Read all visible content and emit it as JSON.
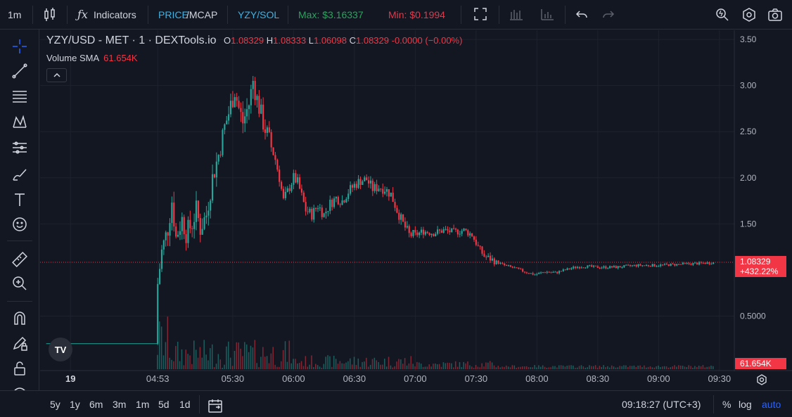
{
  "toolbar": {
    "interval": "1m",
    "indicators_label": "Indicators",
    "price_label": "PRICE",
    "mcap_label": "/MCAP",
    "pair_label": "YZY/SOL",
    "max_label": "Max: $3.16337",
    "min_label": "Min: $0.1994"
  },
  "colors": {
    "up": "#26a69a",
    "down": "#f23645",
    "accent": "#2962ff",
    "background": "#131722",
    "grid": "#1e222d"
  },
  "legend": {
    "symbol": "YZY/USD - MET · 1 · DEXTools.io",
    "o_label": "O",
    "o_value": "1.08329",
    "h_label": "H",
    "h_value": "1.08333",
    "l_label": "L",
    "l_value": "1.06098",
    "c_label": "C",
    "c_value": "1.08329",
    "change": "-0.0000 (−0.00%)",
    "volume_label": "Volume SMA",
    "volume_value": "61.654K"
  },
  "left_tools": [
    "crosshair-icon",
    "trend-line-icon",
    "fib-icon",
    "pattern-icon",
    "forecast-icon",
    "brush-icon",
    "text-icon",
    "emoji-icon",
    "ruler-icon",
    "zoom-in-icon",
    "magnet-icon",
    "lock-drawing-icon",
    "lock-icon",
    "eye-icon"
  ],
  "bottombar": {
    "ranges": [
      "5y",
      "1y",
      "6m",
      "3m",
      "1m",
      "5d",
      "1d"
    ],
    "time": "09:18:27 (UTC+3)",
    "percent": "%",
    "log": "log",
    "auto": "auto"
  },
  "chart_data": {
    "type": "candlestick",
    "title": "YZY/USD - MET · 1 · DEXTools.io",
    "y_ticks": [
      "3.50",
      "3.00",
      "2.50",
      "2.00",
      "1.50",
      "0.5000"
    ],
    "y_tick_values": [
      3.5,
      3.0,
      2.5,
      2.0,
      1.5,
      0.5
    ],
    "x_ticks": [
      "19",
      "04:53",
      "05:30",
      "06:00",
      "06:30",
      "07:00",
      "07:30",
      "08:00",
      "08:30",
      "09:00",
      "09:30"
    ],
    "x_tick_minutes": [
      250,
      293,
      330,
      360,
      390,
      420,
      450,
      480,
      510,
      540,
      570
    ],
    "x_range_minutes": [
      235,
      577
    ],
    "y_range": [
      0.0,
      3.6
    ],
    "last_price": "1.08329",
    "last_price_value": 1.08329,
    "last_change": "+432.22%",
    "volume_badge": "61.654K",
    "price_points": [
      {
        "t": 238,
        "p": 0.2
      },
      {
        "t": 293,
        "p": 0.2
      },
      {
        "t": 294,
        "p": 0.85
      },
      {
        "t": 296,
        "p": 1.2
      },
      {
        "t": 299,
        "p": 1.45
      },
      {
        "t": 301,
        "p": 1.75
      },
      {
        "t": 303,
        "p": 1.35
      },
      {
        "t": 306,
        "p": 1.55
      },
      {
        "t": 308,
        "p": 1.4
      },
      {
        "t": 311,
        "p": 1.5
      },
      {
        "t": 313,
        "p": 1.65
      },
      {
        "t": 315,
        "p": 1.45
      },
      {
        "t": 318,
        "p": 1.6
      },
      {
        "t": 321,
        "p": 2.0
      },
      {
        "t": 324,
        "p": 2.25
      },
      {
        "t": 327,
        "p": 2.55
      },
      {
        "t": 329,
        "p": 2.7
      },
      {
        "t": 332,
        "p": 2.95
      },
      {
        "t": 334,
        "p": 2.75
      },
      {
        "t": 336,
        "p": 2.6
      },
      {
        "t": 339,
        "p": 2.8
      },
      {
        "t": 341,
        "p": 3.05
      },
      {
        "t": 343,
        "p": 2.85
      },
      {
        "t": 346,
        "p": 2.6
      },
      {
        "t": 349,
        "p": 2.4
      },
      {
        "t": 352,
        "p": 2.2
      },
      {
        "t": 354,
        "p": 2.0
      },
      {
        "t": 356,
        "p": 1.75
      },
      {
        "t": 358,
        "p": 1.85
      },
      {
        "t": 361,
        "p": 2.0
      },
      {
        "t": 363,
        "p": 1.95
      },
      {
        "t": 365,
        "p": 1.8
      },
      {
        "t": 367,
        "p": 1.65
      },
      {
        "t": 370,
        "p": 1.6
      },
      {
        "t": 373,
        "p": 1.7
      },
      {
        "t": 376,
        "p": 1.6
      },
      {
        "t": 379,
        "p": 1.72
      },
      {
        "t": 382,
        "p": 1.78
      },
      {
        "t": 385,
        "p": 1.75
      },
      {
        "t": 388,
        "p": 1.85
      },
      {
        "t": 391,
        "p": 1.92
      },
      {
        "t": 394,
        "p": 1.97
      },
      {
        "t": 397,
        "p": 1.98
      },
      {
        "t": 400,
        "p": 1.88
      },
      {
        "t": 403,
        "p": 1.9
      },
      {
        "t": 406,
        "p": 1.88
      },
      {
        "t": 409,
        "p": 1.82
      },
      {
        "t": 412,
        "p": 1.65
      },
      {
        "t": 415,
        "p": 1.5
      },
      {
        "t": 418,
        "p": 1.38
      },
      {
        "t": 421,
        "p": 1.38
      },
      {
        "t": 425,
        "p": 1.42
      },
      {
        "t": 430,
        "p": 1.4
      },
      {
        "t": 435,
        "p": 1.43
      },
      {
        "t": 440,
        "p": 1.41
      },
      {
        "t": 445,
        "p": 1.43
      },
      {
        "t": 449,
        "p": 1.38
      },
      {
        "t": 452,
        "p": 1.25
      },
      {
        "t": 455,
        "p": 1.15
      },
      {
        "t": 460,
        "p": 1.1
      },
      {
        "t": 465,
        "p": 1.05
      },
      {
        "t": 470,
        "p": 1.02
      },
      {
        "t": 475,
        "p": 0.98
      },
      {
        "t": 480,
        "p": 0.95
      },
      {
        "t": 485,
        "p": 0.98
      },
      {
        "t": 490,
        "p": 0.97
      },
      {
        "t": 495,
        "p": 1.0
      },
      {
        "t": 500,
        "p": 1.03
      },
      {
        "t": 505,
        "p": 1.04
      },
      {
        "t": 510,
        "p": 1.03
      },
      {
        "t": 520,
        "p": 1.03
      },
      {
        "t": 530,
        "p": 1.05
      },
      {
        "t": 540,
        "p": 1.05
      },
      {
        "t": 550,
        "p": 1.06
      },
      {
        "t": 560,
        "p": 1.07
      },
      {
        "t": 567,
        "p": 1.08
      }
    ]
  }
}
